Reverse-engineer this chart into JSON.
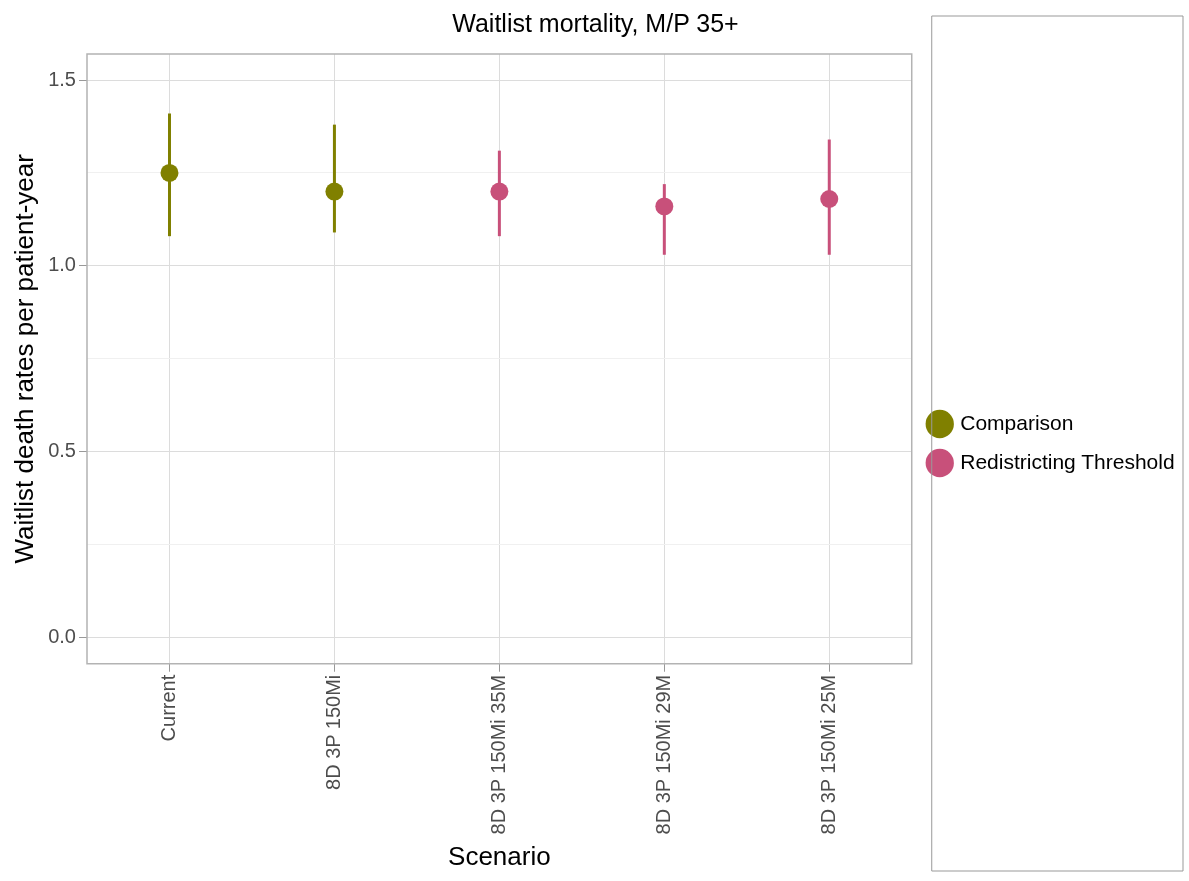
{
  "chart_data": {
    "type": "scatter",
    "title": "Waitlist mortality, M/P 35+",
    "xlabel": "Scenario",
    "ylabel": "Waitlist death rates per patient-year",
    "categories": [
      "Current",
      "8D 3P 150Mi",
      "8D 3P 150Mi 35M",
      "8D 3P 150Mi 29M",
      "8D 3P 150Mi 25M"
    ],
    "series": [
      {
        "name": "Comparison",
        "color": "#808000",
        "values": [
          1.25,
          1.2,
          null,
          null,
          null
        ],
        "errors": [
          [
            1.08,
            1.41
          ],
          [
            1.09,
            1.38
          ],
          null,
          null,
          null
        ]
      },
      {
        "name": "Redistricting Threshold",
        "color": "#c8507a",
        "values": [
          null,
          null,
          1.2,
          1.16,
          1.18
        ],
        "errors": [
          null,
          null,
          [
            1.08,
            1.31
          ],
          [
            1.03,
            1.22
          ],
          [
            1.03,
            1.34
          ]
        ]
      }
    ],
    "ylim": [
      -0.07,
      1.57
    ],
    "yticks": [
      {
        "value": 0,
        "label": "0.0"
      },
      {
        "value": 0.25,
        "label": null
      },
      {
        "value": 0.5,
        "label": "0.5"
      },
      {
        "value": 0.75,
        "label": null
      },
      {
        "value": 1,
        "label": "1.0"
      },
      {
        "value": 1.25,
        "label": null
      },
      {
        "value": 1.5,
        "label": "1.5"
      }
    ],
    "grid": true,
    "legend": "right",
    "marker": "circle"
  }
}
